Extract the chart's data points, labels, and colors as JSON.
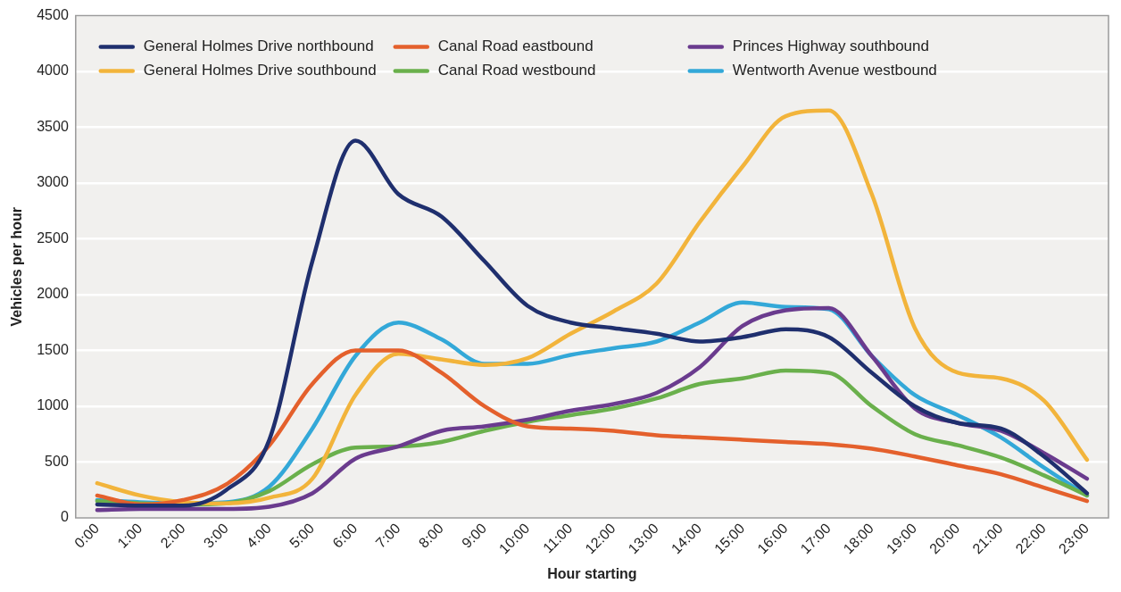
{
  "chart_data": {
    "type": "line",
    "xlabel": "Hour starting",
    "ylabel": "Vehicles per hour",
    "categories": [
      "0:00",
      "1:00",
      "2:00",
      "3:00",
      "4:00",
      "5:00",
      "6:00",
      "7:00",
      "8:00",
      "9:00",
      "10:00",
      "11:00",
      "12:00",
      "13:00",
      "14:00",
      "15:00",
      "16:00",
      "17:00",
      "18:00",
      "19:00",
      "20:00",
      "21:00",
      "22:00",
      "23:00"
    ],
    "ylim": [
      0,
      4500
    ],
    "yticks": [
      0,
      500,
      1000,
      1500,
      2000,
      2500,
      3000,
      3500,
      4000,
      4500
    ],
    "grid": "y",
    "legend": "top left",
    "marker": "none",
    "line_style": "solid",
    "series": [
      {
        "name": "General Holmes Drive northbound",
        "color": "#1f2f6e",
        "values": [
          120,
          110,
          110,
          250,
          700,
          2300,
          3380,
          2900,
          2700,
          2300,
          1900,
          1750,
          1700,
          1650,
          1580,
          1620,
          1690,
          1620,
          1300,
          1000,
          850,
          800,
          550,
          220
        ]
      },
      {
        "name": "Canal Road eastbound",
        "color": "#e4602c",
        "values": [
          200,
          120,
          160,
          300,
          650,
          1200,
          1500,
          1500,
          1300,
          1000,
          820,
          800,
          780,
          740,
          720,
          700,
          680,
          660,
          620,
          550,
          470,
          390,
          270,
          150
        ]
      },
      {
        "name": "Princes Highway southbound",
        "color": "#6a3b8e",
        "values": [
          70,
          80,
          80,
          80,
          100,
          220,
          530,
          640,
          780,
          820,
          880,
          960,
          1020,
          1120,
          1350,
          1720,
          1860,
          1880,
          1450,
          980,
          850,
          780,
          580,
          350
        ]
      },
      {
        "name": "General Holmes Drive southbound",
        "color": "#f2b43b",
        "values": [
          310,
          200,
          140,
          130,
          180,
          350,
          1100,
          1470,
          1420,
          1370,
          1430,
          1650,
          1850,
          2100,
          2650,
          3150,
          3600,
          3650,
          2900,
          1700,
          1300,
          1250,
          1050,
          520
        ]
      },
      {
        "name": "Canal Road westbound",
        "color": "#6ab04c",
        "values": [
          150,
          130,
          120,
          130,
          240,
          480,
          630,
          640,
          680,
          780,
          860,
          920,
          980,
          1070,
          1200,
          1250,
          1320,
          1300,
          1000,
          750,
          650,
          540,
          380,
          200
        ]
      },
      {
        "name": "Wentworth Avenue westbound",
        "color": "#33a8d8",
        "values": [
          160,
          140,
          130,
          140,
          280,
          800,
          1450,
          1750,
          1600,
          1380,
          1380,
          1460,
          1520,
          1580,
          1750,
          1930,
          1890,
          1870,
          1450,
          1100,
          920,
          720,
          450,
          200
        ]
      }
    ]
  }
}
